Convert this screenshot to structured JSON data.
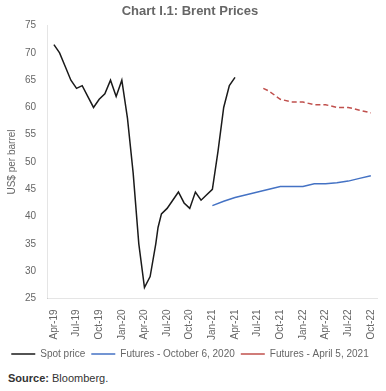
{
  "chart_data": {
    "type": "line",
    "title": "Chart I.1: Brent Prices",
    "y_label": "US$ per barrel",
    "annotations": [
      "Source:",
      "Bloomberg."
    ],
    "xlim": [
      -0.3,
      14.3
    ],
    "xticks": [
      {
        "value": 0,
        "label": "Apr-19"
      },
      {
        "value": 1,
        "label": "Jul-19"
      },
      {
        "value": 2,
        "label": "Oct-19"
      },
      {
        "value": 3,
        "label": "Jan-20"
      },
      {
        "value": 4,
        "label": "Apr-20"
      },
      {
        "value": 5,
        "label": "Jul-20"
      },
      {
        "value": 6,
        "label": "Oct-20"
      },
      {
        "value": 7,
        "label": "Jan-21"
      },
      {
        "value": 8,
        "label": "Apr-21"
      },
      {
        "value": 9,
        "label": "Jul-21"
      },
      {
        "value": 10,
        "label": "Oct-21"
      },
      {
        "value": 11,
        "label": "Jan-22"
      },
      {
        "value": 12,
        "label": "Apr-22"
      },
      {
        "value": 13,
        "label": "Jul-22"
      },
      {
        "value": 14,
        "label": "Oct-22"
      }
    ],
    "ylim": [
      25,
      75
    ],
    "yticks": [
      25,
      30,
      35,
      40,
      45,
      50,
      55,
      60,
      65,
      70,
      75
    ],
    "grid": false,
    "legend": "bottom",
    "series": [
      {
        "name": "Spot price",
        "color": "#1a1a1a",
        "line_style": "solid",
        "x": [
          0,
          0.25,
          0.5,
          0.75,
          1.0,
          1.25,
          1.5,
          1.75,
          2.0,
          2.25,
          2.5,
          2.75,
          3.0,
          3.25,
          3.5,
          3.75,
          4.0,
          4.25,
          4.5,
          4.6,
          4.75,
          5.0,
          5.25,
          5.5,
          5.75,
          6.0,
          6.25,
          6.5,
          6.75,
          7.0,
          7.25,
          7.5,
          7.75,
          8.0
        ],
        "values": [
          71.5,
          70.0,
          67.5,
          65.0,
          63.5,
          64.0,
          62.0,
          60.0,
          61.5,
          62.5,
          65.0,
          62.0,
          65.0,
          58.0,
          48.0,
          35.0,
          27.0,
          29.0,
          35.0,
          38.0,
          40.5,
          41.5,
          43.0,
          44.5,
          42.5,
          41.5,
          44.5,
          43.0,
          44.0,
          45.0,
          52.0,
          60.0,
          64.0,
          65.5
        ]
      },
      {
        "name": "Futures - October 6, 2020",
        "color": "#4472c4",
        "line_style": "solid",
        "x": [
          7.0,
          7.5,
          8.0,
          8.5,
          9.0,
          9.5,
          10.0,
          10.5,
          11.0,
          11.5,
          12.0,
          12.5,
          13.0,
          13.5,
          14.0
        ],
        "values": [
          42.0,
          42.8,
          43.5,
          44.0,
          44.5,
          45.0,
          45.5,
          45.5,
          45.5,
          46.0,
          46.0,
          46.2,
          46.5,
          47.0,
          47.5
        ]
      },
      {
        "name": "Futures - April 5, 2021",
        "color": "#c0504d",
        "line_style": "dashed",
        "x": [
          9.25,
          9.5,
          10.0,
          10.5,
          11.0,
          11.5,
          12.0,
          12.5,
          13.0,
          13.5,
          14.0
        ],
        "values": [
          63.5,
          63.0,
          61.5,
          61.0,
          61.0,
          60.5,
          60.5,
          60.0,
          60.0,
          59.5,
          59.0
        ]
      }
    ]
  }
}
